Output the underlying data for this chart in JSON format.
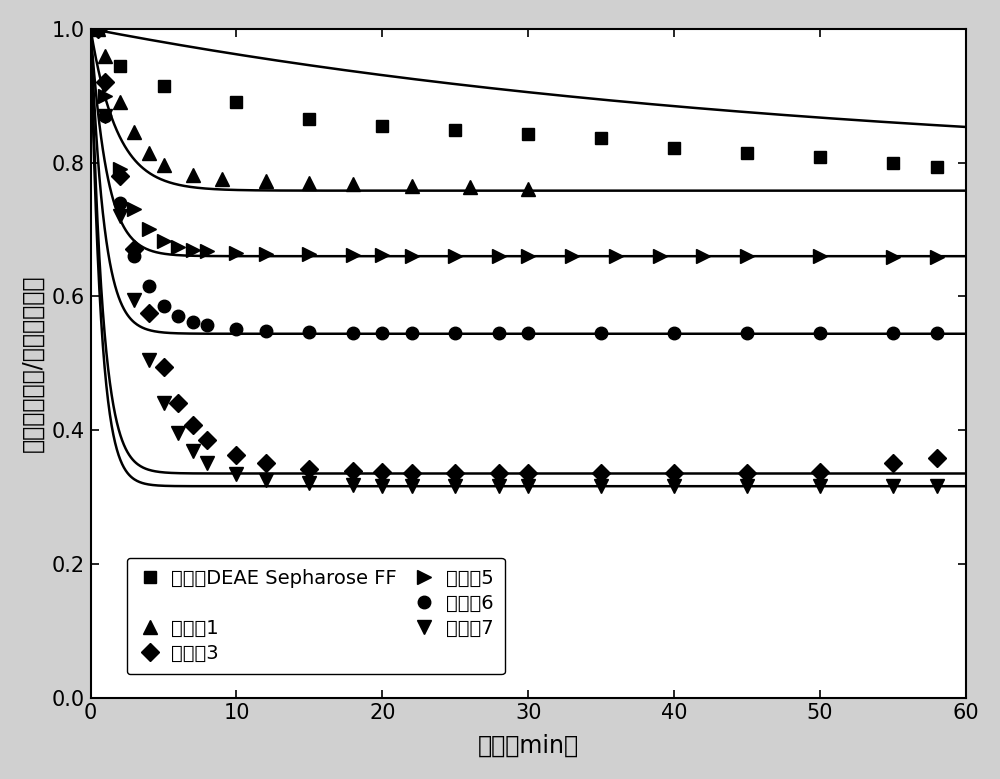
{
  "xlabel": "时间（min）",
  "ylabel": "蛋白实时浓度/蛋白初始浓度",
  "xlim": [
    0,
    60
  ],
  "ylim": [
    0.0,
    1.0
  ],
  "xticks": [
    0,
    10,
    20,
    30,
    40,
    50,
    60
  ],
  "yticks": [
    0.0,
    0.2,
    0.4,
    0.6,
    0.8,
    1.0
  ],
  "background_color": "#d0d0d0",
  "plot_bg_color": "#ffffff",
  "series": [
    {
      "label": "商品化DEAE Sepharose FF",
      "marker": "s",
      "asymptote": 0.79,
      "decay": 0.02,
      "x_data": [
        0.5,
        2,
        5,
        10,
        15,
        20,
        25,
        30,
        35,
        40,
        45,
        50,
        55,
        58
      ],
      "y_data": [
        1.0,
        0.945,
        0.915,
        0.89,
        0.865,
        0.855,
        0.848,
        0.842,
        0.837,
        0.822,
        0.815,
        0.808,
        0.8,
        0.793
      ]
    },
    {
      "label": "实施例1",
      "marker": "^",
      "asymptote": 0.758,
      "decay": 0.55,
      "x_data": [
        0.5,
        1,
        2,
        3,
        4,
        5,
        7,
        9,
        12,
        15,
        18,
        22,
        26,
        30
      ],
      "y_data": [
        1.0,
        0.96,
        0.89,
        0.845,
        0.815,
        0.797,
        0.782,
        0.775,
        0.773,
        0.77,
        0.768,
        0.765,
        0.763,
        0.761
      ]
    },
    {
      "label": "实施例5",
      "marker": ">",
      "asymptote": 0.66,
      "decay": 0.9,
      "x_data": [
        0.5,
        1,
        2,
        3,
        4,
        5,
        6,
        7,
        8,
        10,
        12,
        15,
        18,
        20,
        22,
        25,
        28,
        30,
        33,
        36,
        39,
        42,
        45,
        50,
        55,
        58
      ],
      "y_data": [
        1.0,
        0.9,
        0.79,
        0.73,
        0.7,
        0.682,
        0.673,
        0.669,
        0.667,
        0.665,
        0.664,
        0.663,
        0.662,
        0.662,
        0.661,
        0.661,
        0.661,
        0.66,
        0.66,
        0.66,
        0.66,
        0.66,
        0.66,
        0.66,
        0.659,
        0.659
      ]
    },
    {
      "label": "实施例6",
      "marker": "o",
      "asymptote": 0.544,
      "decay": 1.1,
      "x_data": [
        0.5,
        1,
        2,
        3,
        4,
        5,
        6,
        7,
        8,
        10,
        12,
        15,
        18,
        20,
        22,
        25,
        28,
        30,
        35,
        40,
        45,
        50,
        55,
        58
      ],
      "y_data": [
        1.0,
        0.87,
        0.74,
        0.66,
        0.615,
        0.585,
        0.57,
        0.562,
        0.557,
        0.551,
        0.548,
        0.546,
        0.545,
        0.545,
        0.545,
        0.545,
        0.545,
        0.545,
        0.545,
        0.545,
        0.545,
        0.545,
        0.545,
        0.545
      ]
    },
    {
      "label": "实施例3",
      "marker": "D",
      "asymptote": 0.335,
      "decay": 1.2,
      "x_data": [
        0.5,
        1,
        2,
        3,
        4,
        5,
        6,
        7,
        8,
        10,
        12,
        15,
        18,
        20,
        22,
        25,
        28,
        30,
        35,
        40,
        45,
        50,
        55,
        58
      ],
      "y_data": [
        1.0,
        0.92,
        0.78,
        0.67,
        0.575,
        0.495,
        0.44,
        0.408,
        0.385,
        0.362,
        0.35,
        0.342,
        0.338,
        0.337,
        0.336,
        0.336,
        0.335,
        0.335,
        0.335,
        0.335,
        0.336,
        0.337,
        0.35,
        0.358
      ]
    },
    {
      "label": "实施例7",
      "marker": "v",
      "asymptote": 0.316,
      "decay": 1.4,
      "x_data": [
        0.5,
        1,
        2,
        3,
        4,
        5,
        6,
        7,
        8,
        10,
        12,
        15,
        18,
        20,
        22,
        25,
        28,
        30,
        35,
        40,
        45,
        50,
        55,
        58
      ],
      "y_data": [
        1.0,
        0.87,
        0.72,
        0.595,
        0.505,
        0.44,
        0.395,
        0.368,
        0.35,
        0.334,
        0.326,
        0.321,
        0.318,
        0.317,
        0.317,
        0.317,
        0.316,
        0.316,
        0.316,
        0.316,
        0.316,
        0.316,
        0.316,
        0.316
      ]
    }
  ],
  "legend_fontsize": 14,
  "axis_fontsize": 17,
  "tick_fontsize": 15,
  "marker_size": 9,
  "line_width": 1.8
}
